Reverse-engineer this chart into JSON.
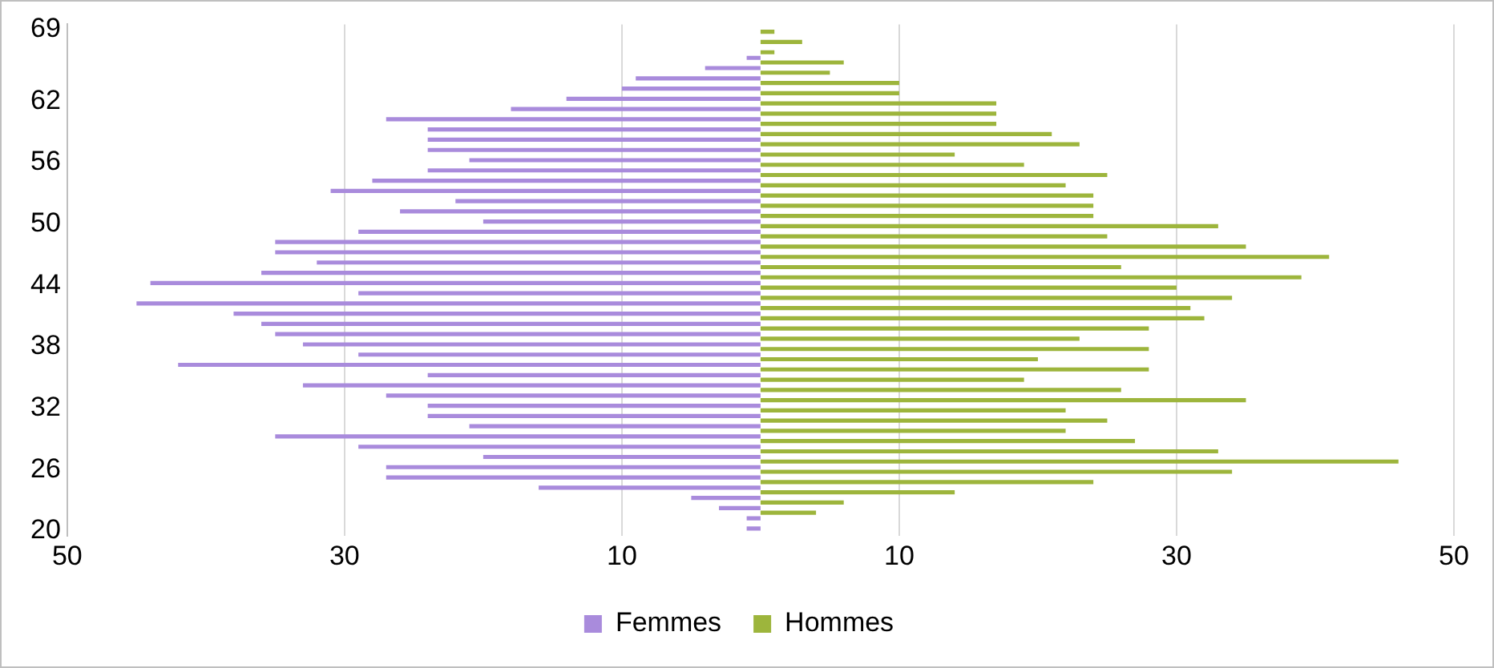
{
  "chart_data": {
    "type": "bar",
    "orientation": "horizontal",
    "categories": [
      "69",
      null,
      null,
      null,
      null,
      null,
      null,
      "62",
      null,
      null,
      null,
      null,
      null,
      "56",
      null,
      null,
      null,
      null,
      null,
      "50",
      null,
      null,
      null,
      null,
      null,
      "44",
      null,
      null,
      null,
      null,
      null,
      "38",
      null,
      null,
      null,
      null,
      null,
      "32",
      null,
      null,
      null,
      null,
      null,
      "26",
      null,
      null,
      null,
      null,
      null,
      "20"
    ],
    "series": [
      {
        "name": "Femmes",
        "color": "#a98bdc",
        "values": [
          0,
          0,
          0,
          -1,
          -4,
          -9,
          -10,
          -14,
          -18,
          -27,
          -24,
          -24,
          -24,
          -21,
          -24,
          -28,
          -31,
          -22,
          -26,
          -20,
          -29,
          -35,
          -35,
          -32,
          -36,
          -44,
          -29,
          -45,
          -38,
          -36,
          -35,
          -33,
          -29,
          -42,
          -24,
          -33,
          -27,
          -24,
          -24,
          -21,
          -35,
          -29,
          -20,
          -27,
          -27,
          -16,
          -5,
          -3,
          -1,
          -1
        ]
      },
      {
        "name": "Hommes",
        "color": "#9db53c",
        "values": [
          1,
          3,
          1,
          6,
          5,
          10,
          10,
          17,
          17,
          17,
          21,
          23,
          14,
          19,
          25,
          22,
          24,
          24,
          24,
          33,
          25,
          35,
          41,
          26,
          39,
          30,
          34,
          31,
          32,
          28,
          23,
          28,
          20,
          28,
          19,
          26,
          35,
          22,
          25,
          22,
          27,
          33,
          46,
          34,
          24,
          14,
          6,
          4,
          0,
          0
        ]
      }
    ],
    "xlim": [
      -50,
      50
    ],
    "xticks": [
      {
        "value": -50,
        "label": "50"
      },
      {
        "value": -30,
        "label": "30"
      },
      {
        "value": -10,
        "label": "10"
      },
      {
        "value": 10,
        "label": "10"
      },
      {
        "value": 30,
        "label": "30"
      },
      {
        "value": 50,
        "label": "50"
      }
    ],
    "grid": "x",
    "legend": "bottom"
  }
}
